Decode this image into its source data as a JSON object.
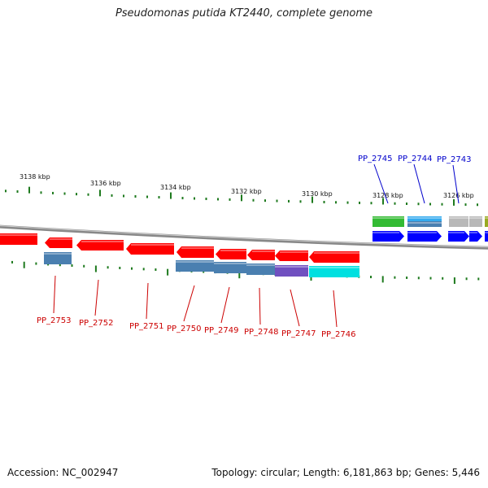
{
  "title": "Pseudomonas putida KT2440, complete genome",
  "footer": {
    "accession": "Accession: NC_002947",
    "summary": "Topology: circular; Length: 6,181,863 bp; Genes: 5,446"
  },
  "colors": {
    "backbone": "#8a8a8a",
    "tick": "#1e7a1e",
    "label_minus": "#cc0000",
    "label_plus": "#0000cc",
    "cds_minus": "#ff0000",
    "gene_blue": "#0000ff",
    "cds_steel": "#4a7fb0",
    "cds_violet": "#7050c0",
    "cds_cyan": "#00e0e0",
    "cds_green": "#33bb33",
    "cds_lightblue": "#33aaee",
    "cds_grey": "#b8b8b8",
    "cds_olive": "#99aa22"
  },
  "ruler": [
    {
      "label": "3138 kbp"
    },
    {
      "label": "3136 kbp"
    },
    {
      "label": "3134 kbp"
    },
    {
      "label": "3132 kbp"
    },
    {
      "label": "3130 kbp"
    },
    {
      "label": "3128 kbp"
    },
    {
      "label": "3126 kbp"
    }
  ],
  "genes_minus": [
    {
      "name": "PP_2753"
    },
    {
      "name": "PP_2752"
    },
    {
      "name": "PP_2751"
    },
    {
      "name": "PP_2750"
    },
    {
      "name": "PP_2749"
    },
    {
      "name": "PP_2748"
    },
    {
      "name": "PP_2747"
    },
    {
      "name": "PP_2746"
    }
  ],
  "genes_plus": [
    {
      "name": "PP_2745"
    },
    {
      "name": "PP_2744"
    },
    {
      "name": "PP_2743"
    }
  ]
}
